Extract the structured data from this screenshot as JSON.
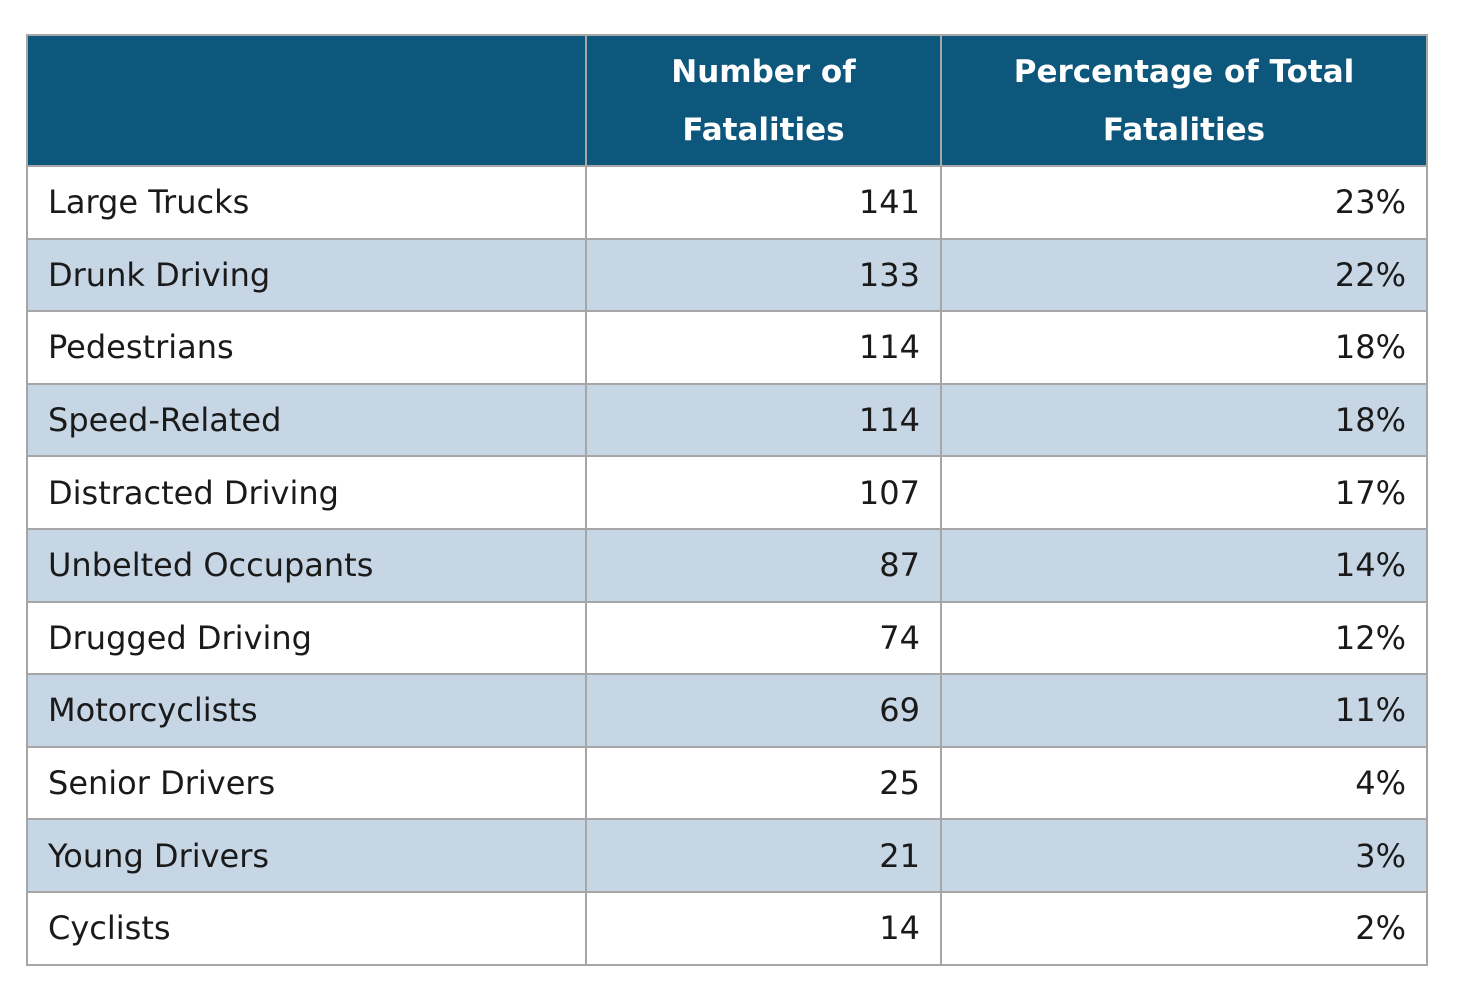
{
  "table": {
    "headers": [
      {
        "label": ""
      },
      {
        "label": "Number of Fatalities"
      },
      {
        "label": "Percentage of Total Fatalities"
      }
    ],
    "rows": [
      {
        "category": "Large Trucks",
        "fatalities": "141",
        "percentage": "23%"
      },
      {
        "category": "Drunk Driving",
        "fatalities": "133",
        "percentage": "22%"
      },
      {
        "category": "Pedestrians",
        "fatalities": "114",
        "percentage": "18%"
      },
      {
        "category": "Speed-Related",
        "fatalities": "114",
        "percentage": "18%"
      },
      {
        "category": "Distracted Driving",
        "fatalities": "107",
        "percentage": "17%"
      },
      {
        "category": "Unbelted Occupants",
        "fatalities": "87",
        "percentage": "14%"
      },
      {
        "category": "Drugged Driving",
        "fatalities": "74",
        "percentage": "12%"
      },
      {
        "category": "Motorcyclists",
        "fatalities": "69",
        "percentage": "11%"
      },
      {
        "category": "Senior Drivers",
        "fatalities": "25",
        "percentage": "4%"
      },
      {
        "category": "Young Drivers",
        "fatalities": "21",
        "percentage": "3%"
      },
      {
        "category": "Cyclists",
        "fatalities": "14",
        "percentage": "2%"
      }
    ]
  },
  "colors": {
    "header_background": "#0e577c",
    "header_text": "#ffffff",
    "stripe_background": "#c6d6e5",
    "row_background": "#ffffff",
    "border": "#a6a6a6"
  }
}
